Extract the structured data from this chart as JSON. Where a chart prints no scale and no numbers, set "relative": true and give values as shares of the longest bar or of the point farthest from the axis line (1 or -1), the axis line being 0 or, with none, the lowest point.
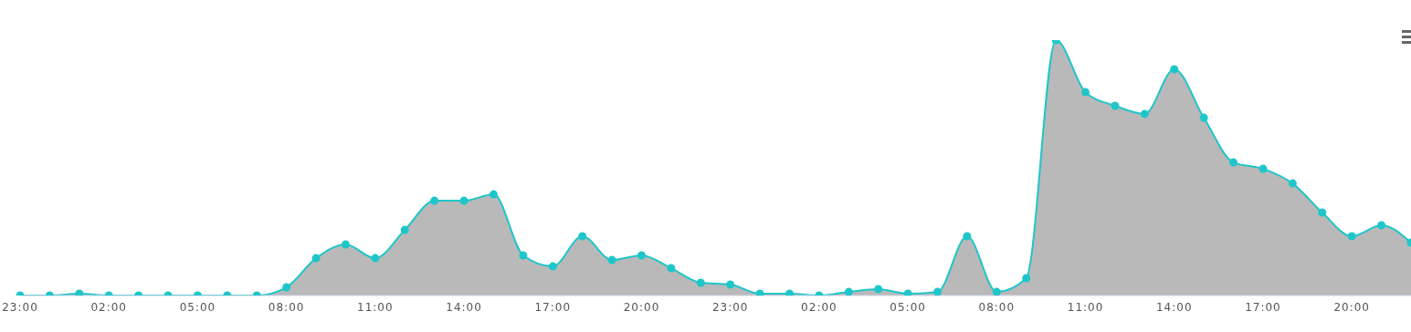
{
  "chart_data": {
    "type": "area",
    "relative": true,
    "marker": "circle",
    "legend": false,
    "grid": false,
    "categories": [
      "23:00",
      null,
      null,
      "02:00",
      null,
      null,
      "05:00",
      null,
      null,
      "08:00",
      null,
      null,
      "11:00",
      null,
      null,
      "14:00",
      null,
      null,
      "17:00",
      null,
      null,
      "20:00",
      null,
      null,
      "23:00",
      null,
      null,
      "02:00",
      null,
      null,
      "05:00",
      null,
      null,
      "08:00",
      null,
      null,
      "11:00",
      null,
      null,
      "14:00",
      null,
      null,
      "17:00",
      null,
      null,
      "20:00",
      null,
      null
    ],
    "series": [
      {
        "color": "#1fc6c9",
        "values": [
          0,
          0,
          0.007,
          0,
          0,
          0,
          0,
          0,
          0,
          0.032,
          0.146,
          0.2,
          0.146,
          0.257,
          0.371,
          0.371,
          0.396,
          0.157,
          0.114,
          0.232,
          0.139,
          0.157,
          0.107,
          0.05,
          0.043,
          0.007,
          0.007,
          0,
          0.014,
          0.025,
          0.007,
          0.014,
          0.232,
          0.014,
          0.068,
          1,
          0.796,
          0.743,
          0.711,
          0.886,
          0.696,
          0.521,
          0.496,
          0.439,
          0.325,
          0.232,
          0.275,
          0.207
        ]
      }
    ]
  }
}
